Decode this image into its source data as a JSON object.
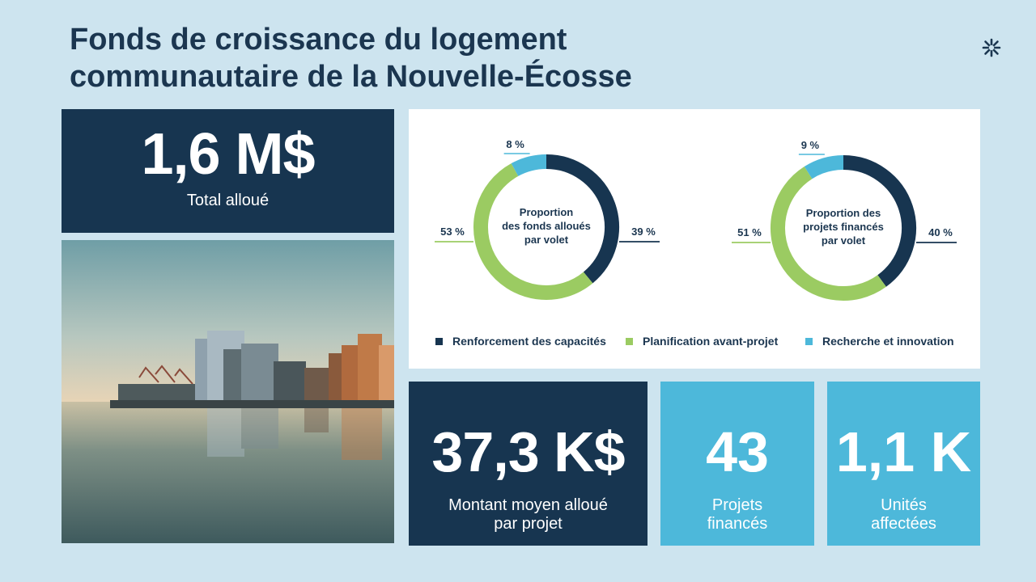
{
  "title_line1": "Fonds de croissance du logement",
  "title_line2": "communautaire de la Nouvelle-Écosse",
  "total": {
    "value": "1,6 M$",
    "label": "Total alloué"
  },
  "average": {
    "value": "37,3 K$",
    "label": "Montant moyen alloué par projet"
  },
  "projects": {
    "value": "43",
    "label": "Projets financés"
  },
  "units": {
    "value": "1,1 K",
    "label": "Unités affectées"
  },
  "colors": {
    "navy": "#173550",
    "green": "#9bcb62",
    "cyan": "#4db8da",
    "background": "#cde4ef"
  },
  "icons": {
    "logo": "asterisk-logo-icon"
  },
  "chart_data": [
    {
      "type": "pie",
      "subtype": "donut",
      "title": "Proportion des fonds alloués par volet",
      "title_lines": [
        "Proportion",
        "des fonds alloués",
        "par volet"
      ],
      "categories": [
        "Renforcement des capacités",
        "Planification avant-projet",
        "Recherche et innovation"
      ],
      "values": [
        39,
        53,
        8
      ],
      "labels": [
        "39 %",
        "53 %",
        "8 %"
      ],
      "colors": [
        "#173550",
        "#9bcb62",
        "#4db8da"
      ]
    },
    {
      "type": "pie",
      "subtype": "donut",
      "title": "Proportion des projets financés par volet",
      "title_lines": [
        "Proportion des",
        "projets financés",
        "par volet"
      ],
      "categories": [
        "Renforcement des capacités",
        "Planification avant-projet",
        "Recherche et innovation"
      ],
      "values": [
        40,
        51,
        9
      ],
      "labels": [
        "40 %",
        "51 %",
        "9 %"
      ],
      "colors": [
        "#173550",
        "#9bcb62",
        "#4db8da"
      ]
    }
  ],
  "legend": {
    "placement": "bottom",
    "items": [
      {
        "label": "Renforcement des capacités",
        "color": "#173550"
      },
      {
        "label": "Planification avant-projet",
        "color": "#9bcb62"
      },
      {
        "label": "Recherche et innovation",
        "color": "#4db8da"
      }
    ]
  }
}
